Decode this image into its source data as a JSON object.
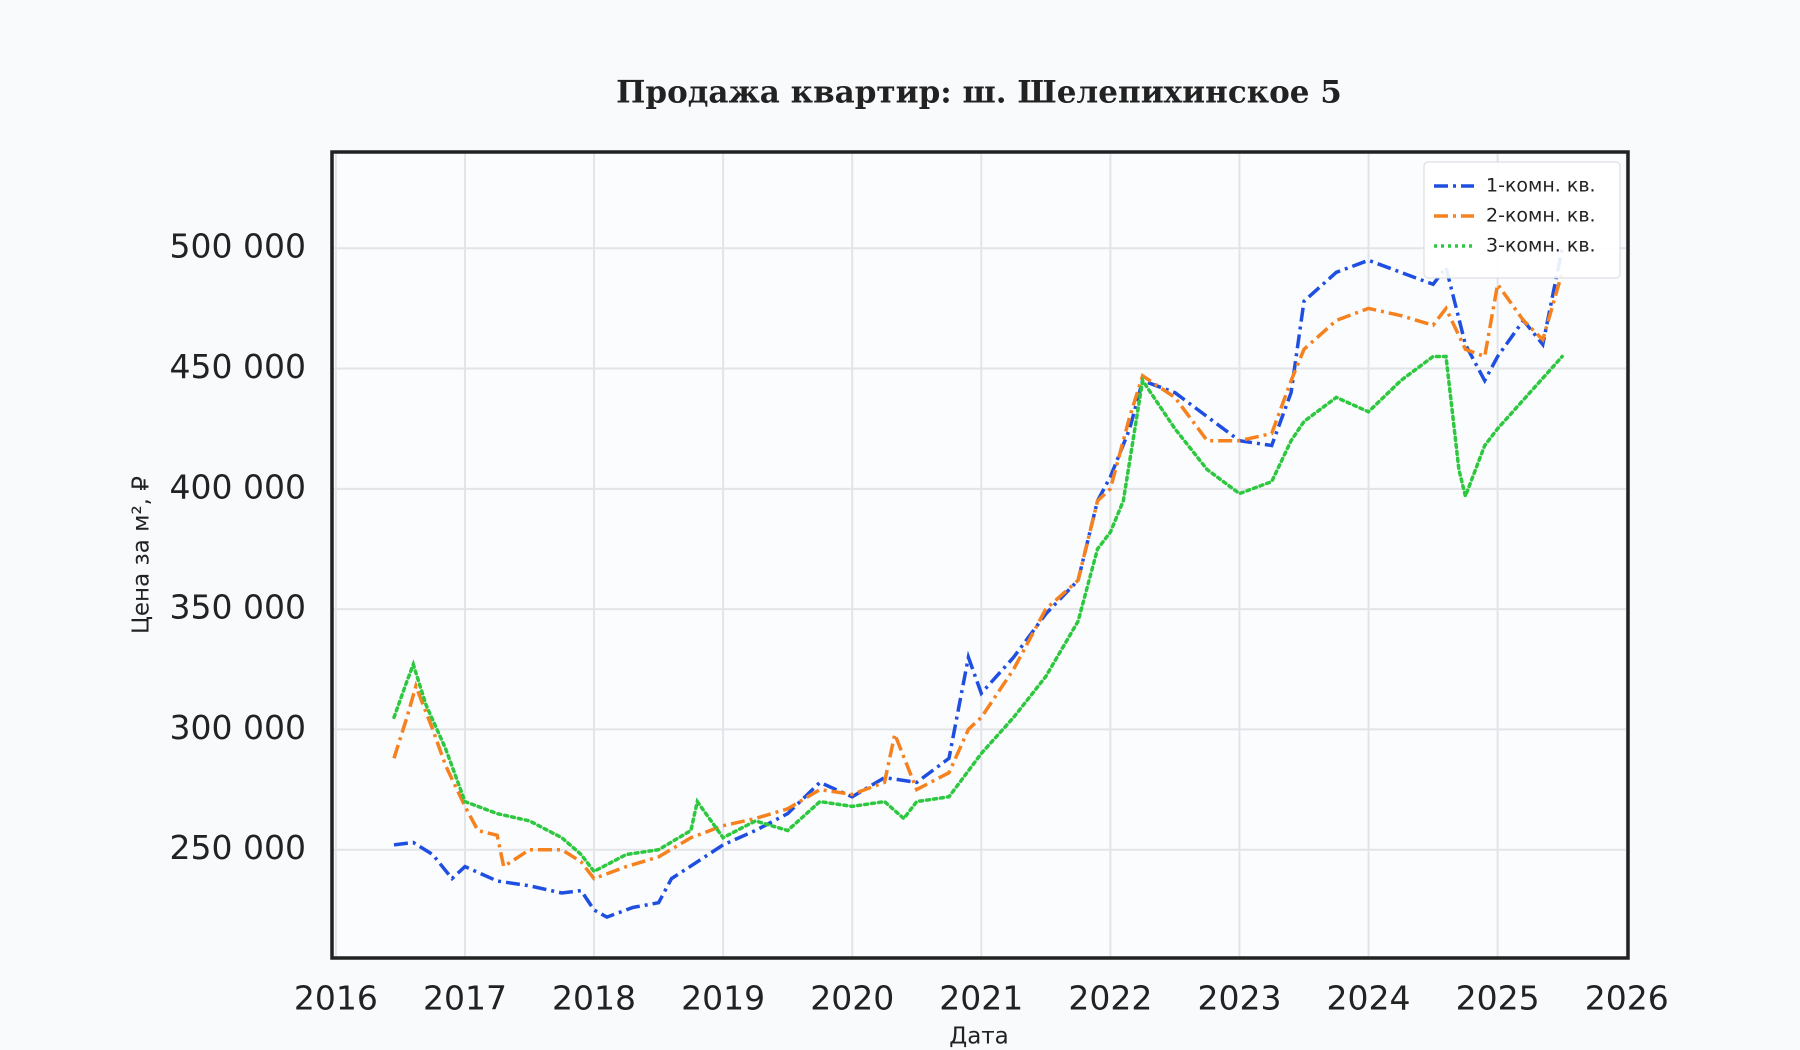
{
  "chart_data": {
    "type": "line",
    "title": "Продажа квартир: ш. Шелепихинское 5",
    "x_label": "Дата",
    "y_label": "Цена за м², ₽",
    "xlim": [
      2015.97,
      2026.01
    ],
    "ylim": [
      205000,
      540000
    ],
    "xticks": [
      2016,
      2017,
      2018,
      2019,
      2020,
      2021,
      2022,
      2023,
      2024,
      2025,
      2026
    ],
    "yticks": [
      {
        "value": 250000,
        "label": "250 000"
      },
      {
        "value": 300000,
        "label": "300 000"
      },
      {
        "value": 350000,
        "label": "350 000"
      },
      {
        "value": 400000,
        "label": "400 000"
      },
      {
        "value": 450000,
        "label": "450 000"
      },
      {
        "value": 500000,
        "label": "500 000"
      }
    ],
    "grid": true,
    "legend": "upper right",
    "series": [
      {
        "name": "1-комн. кв.",
        "color": "#1f4fe0",
        "style": "dashdot",
        "x": [
          2016.45,
          2016.6,
          2016.75,
          2016.9,
          2017.0,
          2017.25,
          2017.5,
          2017.75,
          2017.9,
          2018.0,
          2018.1,
          2018.3,
          2018.5,
          2018.6,
          2018.8,
          2019.0,
          2019.25,
          2019.5,
          2019.75,
          2020.0,
          2020.25,
          2020.5,
          2020.75,
          2020.9,
          2021.0,
          2021.25,
          2021.5,
          2021.75,
          2021.9,
          2022.0,
          2022.15,
          2022.25,
          2022.5,
          2022.75,
          2023.0,
          2023.25,
          2023.4,
          2023.5,
          2023.75,
          2024.0,
          2024.25,
          2024.5,
          2024.6,
          2024.75,
          2024.9,
          2025.0,
          2025.2,
          2025.35,
          2025.5
        ],
        "values": [
          252000,
          253000,
          248000,
          238000,
          243000,
          237000,
          235000,
          232000,
          233000,
          225000,
          222000,
          226000,
          228000,
          238000,
          245000,
          252000,
          258000,
          265000,
          278000,
          272000,
          280000,
          278000,
          288000,
          330000,
          315000,
          330000,
          348000,
          362000,
          395000,
          405000,
          425000,
          445000,
          440000,
          430000,
          420000,
          418000,
          440000,
          478000,
          490000,
          495000,
          490000,
          485000,
          492000,
          460000,
          445000,
          455000,
          470000,
          460000,
          500000
        ]
      },
      {
        "name": "2-комн. кв.",
        "color": "#f5821f",
        "style": "dashdot",
        "x": [
          2016.45,
          2016.55,
          2016.62,
          2016.75,
          2016.85,
          2017.0,
          2017.1,
          2017.25,
          2017.3,
          2017.5,
          2017.75,
          2017.9,
          2018.0,
          2018.25,
          2018.5,
          2018.75,
          2019.0,
          2019.25,
          2019.5,
          2019.75,
          2020.0,
          2020.25,
          2020.33,
          2020.5,
          2020.75,
          2020.9,
          2021.0,
          2021.25,
          2021.5,
          2021.75,
          2021.9,
          2022.0,
          2022.15,
          2022.25,
          2022.5,
          2022.75,
          2023.0,
          2023.25,
          2023.4,
          2023.5,
          2023.75,
          2024.0,
          2024.25,
          2024.5,
          2024.6,
          2024.75,
          2024.9,
          2025.0,
          2025.2,
          2025.35,
          2025.5
        ],
        "values": [
          288000,
          305000,
          318000,
          300000,
          285000,
          268000,
          258000,
          256000,
          243000,
          250000,
          250000,
          245000,
          238000,
          243000,
          247000,
          255000,
          260000,
          263000,
          267000,
          275000,
          273000,
          278000,
          298000,
          275000,
          282000,
          300000,
          305000,
          325000,
          350000,
          362000,
          395000,
          400000,
          430000,
          447000,
          438000,
          420000,
          420000,
          423000,
          445000,
          458000,
          470000,
          475000,
          472000,
          468000,
          475000,
          458000,
          455000,
          485000,
          470000,
          462000,
          490000
        ]
      },
      {
        "name": "3-комн. кв.",
        "color": "#2ec840",
        "style": "dotted",
        "x": [
          2016.45,
          2016.55,
          2016.6,
          2016.7,
          2016.85,
          2017.0,
          2017.25,
          2017.5,
          2017.75,
          2017.9,
          2018.0,
          2018.25,
          2018.5,
          2018.75,
          2018.8,
          2019.0,
          2019.25,
          2019.5,
          2019.75,
          2020.0,
          2020.25,
          2020.4,
          2020.5,
          2020.75,
          2021.0,
          2021.25,
          2021.5,
          2021.75,
          2021.9,
          2022.0,
          2022.1,
          2022.25,
          2022.5,
          2022.75,
          2023.0,
          2023.25,
          2023.4,
          2023.5,
          2023.75,
          2024.0,
          2024.25,
          2024.5,
          2024.6,
          2024.7,
          2024.75,
          2024.9,
          2025.0,
          2025.25,
          2025.5
        ],
        "values": [
          305000,
          320000,
          327000,
          310000,
          292000,
          270000,
          265000,
          262000,
          255000,
          248000,
          241000,
          248000,
          250000,
          258000,
          270000,
          255000,
          262000,
          258000,
          270000,
          268000,
          270000,
          263000,
          270000,
          272000,
          290000,
          305000,
          322000,
          345000,
          375000,
          382000,
          395000,
          445000,
          425000,
          408000,
          398000,
          403000,
          420000,
          428000,
          438000,
          432000,
          445000,
          455000,
          455000,
          408000,
          397000,
          418000,
          425000,
          440000,
          455000
        ]
      }
    ]
  }
}
